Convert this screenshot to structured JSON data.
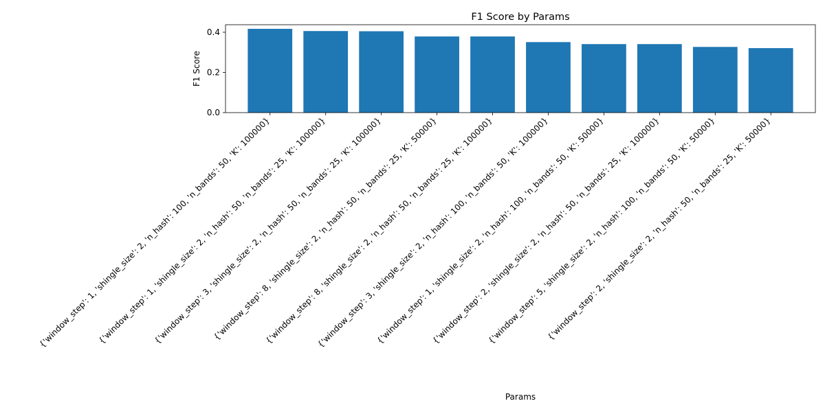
{
  "chart_data": {
    "type": "bar",
    "title": "F1 Score by Params",
    "xlabel": "Params",
    "ylabel": "F1 Score",
    "ylim": [
      0,
      0.4375
    ],
    "yticks": [
      0.0,
      0.2,
      0.4
    ],
    "ytick_labels": [
      "0.0",
      "0.2",
      "0.4"
    ],
    "grid": false,
    "legend": "none",
    "bar_color": "#1f77b4",
    "categories": [
      "{'window_step': 1, 'shingle_size': 2, 'n_hash': 100, 'n_bands': 50, 'K': 100000}",
      "{'window_step': 1, 'shingle_size': 2, 'n_hash': 50, 'n_bands': 25, 'K': 100000}",
      "{'window_step': 3, 'shingle_size': 2, 'n_hash': 50, 'n_bands': 25, 'K': 100000}",
      "{'window_step': 8, 'shingle_size': 2, 'n_hash': 50, 'n_bands': 25, 'K': 50000}",
      "{'window_step': 8, 'shingle_size': 2, 'n_hash': 50, 'n_bands': 25, 'K': 100000}",
      "{'window_step': 3, 'shingle_size': 2, 'n_hash': 100, 'n_bands': 50, 'K': 100000}",
      "{'window_step': 1, 'shingle_size': 2, 'n_hash': 100, 'n_bands': 50, 'K': 50000}",
      "{'window_step': 2, 'shingle_size': 2, 'n_hash': 50, 'n_bands': 25, 'K': 100000}",
      "{'window_step': 5, 'shingle_size': 2, 'n_hash': 100, 'n_bands': 50, 'K': 50000}",
      "{'window_step': 2, 'shingle_size': 2, 'n_hash': 50, 'n_bands': 25, 'K': 50000}"
    ],
    "values": [
      0.417,
      0.406,
      0.405,
      0.379,
      0.379,
      0.351,
      0.341,
      0.341,
      0.327,
      0.321
    ]
  }
}
